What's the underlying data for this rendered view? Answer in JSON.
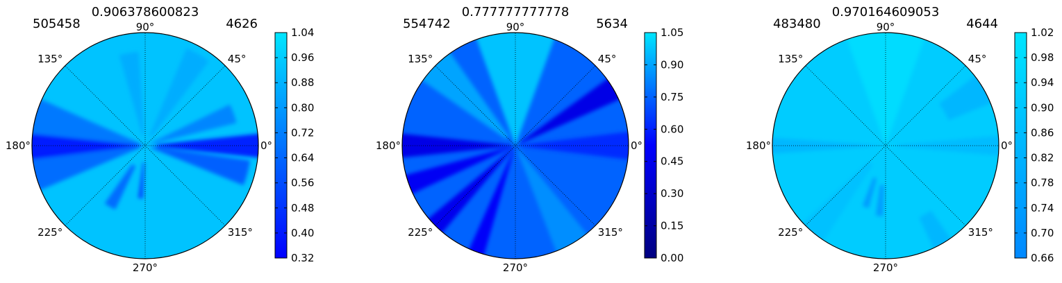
{
  "chart_data": [
    {
      "type": "heatmap",
      "projection": "polar",
      "title": "0.906378600823",
      "corner_left": "505458",
      "corner_right": "4626",
      "angle_ticks": [
        "0°",
        "45°",
        "90°",
        "135°",
        "180°",
        "225°",
        "270°",
        "315°"
      ],
      "grid": true,
      "colorbar": {
        "ticks": [
          "0.32",
          "0.40",
          "0.48",
          "0.56",
          "0.64",
          "0.72",
          "0.80",
          "0.88",
          "0.96",
          "1.04"
        ],
        "range": [
          0.32,
          1.04
        ],
        "colors": [
          "#0000ff",
          "#00e6ff"
        ]
      },
      "background_value": 0.93,
      "features": [
        {
          "angle": 180,
          "value": 0.4,
          "width": 14,
          "inner": 0.0,
          "outer": 1.0
        },
        {
          "angle": 0,
          "value": 0.42,
          "width": 12,
          "inner": 0.1,
          "outer": 1.0
        },
        {
          "angle": 165,
          "value": 0.7,
          "width": 18,
          "inner": 0.05,
          "outer": 1.0
        },
        {
          "angle": 195,
          "value": 0.66,
          "width": 16,
          "inner": 0.05,
          "outer": 1.0
        },
        {
          "angle": 345,
          "value": 0.62,
          "width": 14,
          "inner": 0.05,
          "outer": 0.9
        },
        {
          "angle": 20,
          "value": 0.74,
          "width": 12,
          "inner": 0.05,
          "outer": 0.8
        },
        {
          "angle": 240,
          "value": 0.66,
          "width": 10,
          "inner": 0.2,
          "outer": 0.6
        },
        {
          "angle": 265,
          "value": 0.6,
          "width": 6,
          "inner": 0.15,
          "outer": 0.45
        },
        {
          "angle": 100,
          "value": 0.86,
          "width": 12,
          "inner": 0.1,
          "outer": 0.8
        },
        {
          "angle": 60,
          "value": 0.86,
          "width": 14,
          "inner": 0.1,
          "outer": 0.9
        }
      ]
    },
    {
      "type": "heatmap",
      "projection": "polar",
      "title": "0.777777777778",
      "corner_left": "554742",
      "corner_right": "5634",
      "angle_ticks": [
        "0°",
        "45°",
        "90°",
        "135°",
        "180°",
        "225°",
        "270°",
        "315°"
      ],
      "grid": true,
      "colorbar": {
        "ticks": [
          "0.00",
          "0.15",
          "0.30",
          "0.45",
          "0.60",
          "0.75",
          "0.90",
          "1.05"
        ],
        "range": [
          0.0,
          1.05
        ],
        "colors": [
          "#000080",
          "#0000ff",
          "#00e6ff"
        ]
      },
      "background_value": 0.75,
      "features": [
        {
          "angle": 90,
          "value": 0.97,
          "width": 40,
          "inner": 0.0,
          "outer": 1.0
        },
        {
          "angle": 135,
          "value": 0.9,
          "width": 20,
          "inner": 0.1,
          "outer": 1.0
        },
        {
          "angle": 30,
          "value": 0.42,
          "width": 12,
          "inner": 0.0,
          "outer": 1.0
        },
        {
          "angle": 180,
          "value": 0.42,
          "width": 12,
          "inner": 0.0,
          "outer": 1.0
        },
        {
          "angle": 200,
          "value": 0.48,
          "width": 10,
          "inner": 0.0,
          "outer": 1.0
        },
        {
          "angle": 225,
          "value": 0.45,
          "width": 10,
          "inner": 0.0,
          "outer": 1.0
        },
        {
          "angle": 250,
          "value": 0.5,
          "width": 8,
          "inner": 0.05,
          "outer": 1.0
        },
        {
          "angle": 300,
          "value": 0.85,
          "width": 18,
          "inner": 0.05,
          "outer": 1.0
        },
        {
          "angle": 0,
          "value": 0.62,
          "width": 14,
          "inner": 0.05,
          "outer": 1.0
        }
      ]
    },
    {
      "type": "heatmap",
      "projection": "polar",
      "title": "0.970164609053",
      "corner_left": "483480",
      "corner_right": "4644",
      "angle_ticks": [
        "0°",
        "45°",
        "90°",
        "135°",
        "180°",
        "225°",
        "270°",
        "315°"
      ],
      "grid": true,
      "colorbar": {
        "ticks": [
          "0.66",
          "0.70",
          "0.74",
          "0.78",
          "0.82",
          "0.86",
          "0.90",
          "0.94",
          "0.98",
          "1.02"
        ],
        "range": [
          0.66,
          1.02
        ],
        "colors": [
          "#0088ff",
          "#00e6ff"
        ]
      },
      "background_value": 0.92,
      "features": [
        {
          "angle": 90,
          "value": 0.98,
          "width": 40,
          "inner": 0.0,
          "outer": 1.0
        },
        {
          "angle": 180,
          "value": 0.84,
          "width": 8,
          "inner": 0.0,
          "outer": 1.0
        },
        {
          "angle": 30,
          "value": 0.84,
          "width": 16,
          "inner": 0.6,
          "outer": 1.0
        },
        {
          "angle": 0,
          "value": 0.86,
          "width": 10,
          "inner": 0.1,
          "outer": 1.0
        },
        {
          "angle": 265,
          "value": 0.74,
          "width": 6,
          "inner": 0.35,
          "outer": 0.6
        },
        {
          "angle": 252,
          "value": 0.74,
          "width": 6,
          "inner": 0.3,
          "outer": 0.55
        },
        {
          "angle": 300,
          "value": 0.84,
          "width": 10,
          "inner": 0.7,
          "outer": 1.0
        },
        {
          "angle": 230,
          "value": 0.88,
          "width": 14,
          "inner": 0.2,
          "outer": 1.0
        }
      ]
    }
  ]
}
